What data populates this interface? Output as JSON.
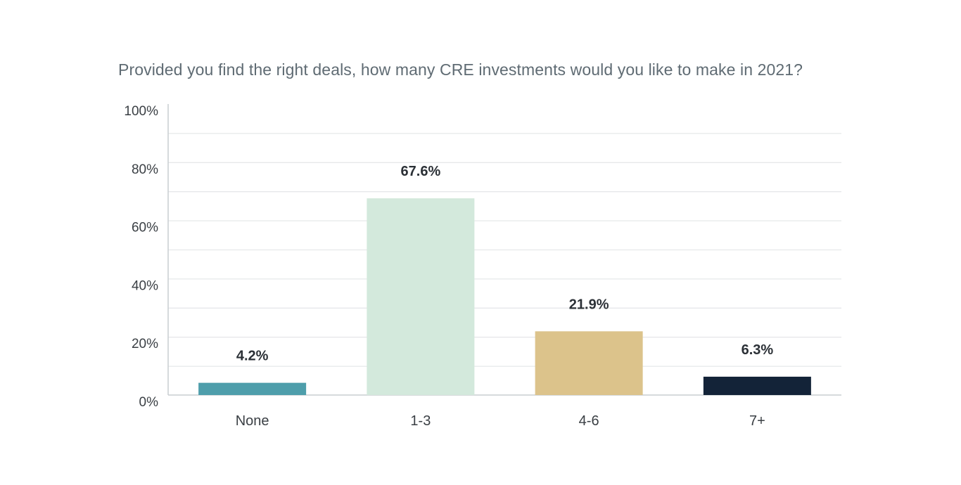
{
  "chart_data": {
    "type": "bar",
    "title": "Provided you find the right deals, how many CRE investments would you like to make in 2021?",
    "xlabel": "",
    "ylabel": "",
    "categories": [
      "None",
      "1-3",
      "4-6",
      "7+"
    ],
    "values": [
      4.2,
      67.6,
      21.9,
      6.3
    ],
    "value_labels": [
      "4.2%",
      "67.6%",
      "21.9%",
      "6.3%"
    ],
    "bar_colors": [
      "#4e9eab",
      "#d3e9dc",
      "#dcc38b",
      "#132338"
    ],
    "ylim": [
      0,
      100
    ],
    "yticks": [
      0,
      20,
      40,
      60,
      80,
      100
    ],
    "ytick_labels": [
      "0%",
      "20%",
      "40%",
      "60%",
      "80%",
      "100%"
    ],
    "minor_gridlines_every": 10,
    "grid": true,
    "legend": "none"
  }
}
